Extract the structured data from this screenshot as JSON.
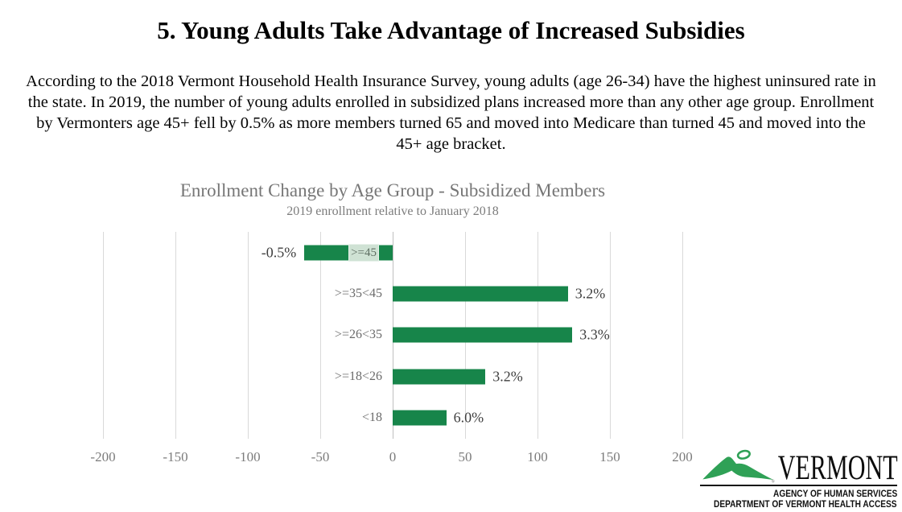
{
  "page": {
    "title": "5. Young Adults Take Advantage of Increased Subsidies",
    "intro": "According to the 2018 Vermont Household Health Insurance Survey, young adults (age 26-34) have the highest uninsured rate in the state. In 2019, the number of young adults enrolled in subsidized plans increased more than any other age group. Enrollment by Vermonters age 45+ fell by 0.5% as more members turned 65 and moved into Medicare than turned 45 and moved into the 45+ age bracket."
  },
  "chart_data": {
    "type": "bar",
    "orientation": "horizontal",
    "title": "Enrollment Change by Age Group - Subsidized Members",
    "subtitle": "2019 enrollment relative to January 2018",
    "categories": [
      ">=45",
      ">=35<45",
      ">=26<35",
      ">=18<26",
      "<18"
    ],
    "values": [
      -61,
      121,
      124,
      64,
      37
    ],
    "data_labels": [
      "-0.5%",
      "3.2%",
      "3.3%",
      "3.2%",
      "6.0%"
    ],
    "x_ticks": [
      -200,
      -150,
      -100,
      -50,
      0,
      50,
      100,
      150,
      200
    ],
    "xlim": [
      -200,
      200
    ],
    "grid": "vertical-gridlines-on",
    "legend": "none",
    "bar_color": "#17854a",
    "category_label_box_color": "#cfe2d4",
    "gridline_color": "#d9d9d9"
  },
  "logo": {
    "word": "VERMONT",
    "registered_mark": "®",
    "line1": "AGENCY OF HUMAN SERVICES",
    "line2": "DEPARTMENT OF VERMONT HEALTH ACCESS",
    "green": "#2fa156"
  }
}
